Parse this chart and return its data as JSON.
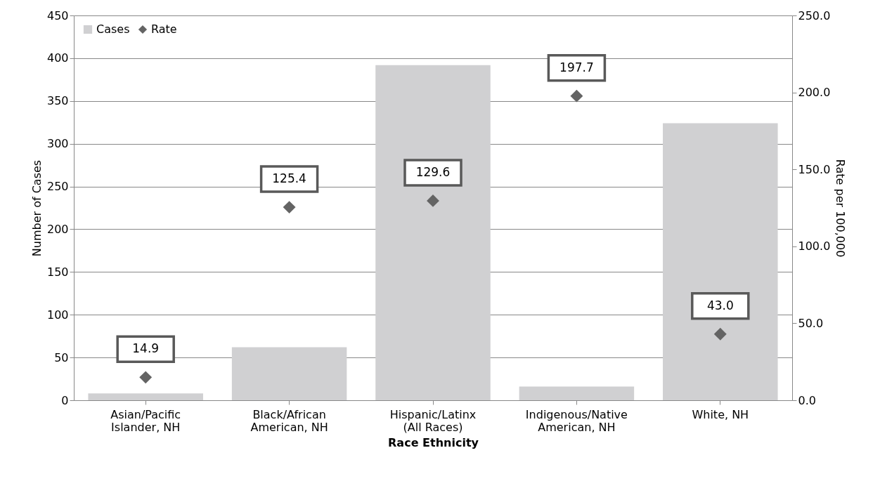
{
  "chart_data": {
    "type": "bar",
    "xlabel": "Race Ethnicity",
    "ylabel": "Number of Cases",
    "y2label": "Rate per 100,000",
    "categories": [
      "Asian/Pacific Islander, NH",
      "Black/African American, NH",
      "Hispanic/Latinx (All Races)",
      "Indigenous/Native American, NH",
      "White, NH"
    ],
    "series": [
      {
        "name": "Cases",
        "color": "#d0d0d2",
        "values": [
          8,
          62,
          392,
          16,
          324
        ]
      },
      {
        "name": "Rate",
        "type": "scatter",
        "axis": "y2",
        "color": "#646464",
        "marker": "diamond",
        "values": [
          14.9,
          125.4,
          129.6,
          197.7,
          43.0
        ],
        "value_labels": [
          "14.9",
          "125.4",
          "129.6",
          "197.7",
          "43.0"
        ]
      }
    ],
    "ylim": [
      0,
      450
    ],
    "yticks": [
      0,
      50,
      100,
      150,
      200,
      250,
      300,
      350,
      400,
      450
    ],
    "y2lim": [
      0,
      250
    ],
    "y2ticks": [
      {
        "value": 0,
        "label": "0.0"
      },
      {
        "value": 50,
        "label": "50.0"
      },
      {
        "value": 100,
        "label": "100.0"
      },
      {
        "value": 150,
        "label": "150.0"
      },
      {
        "value": 200,
        "label": "200.0"
      },
      {
        "value": 250,
        "label": "250.0"
      }
    ],
    "grid": "y",
    "legend": "top left"
  }
}
